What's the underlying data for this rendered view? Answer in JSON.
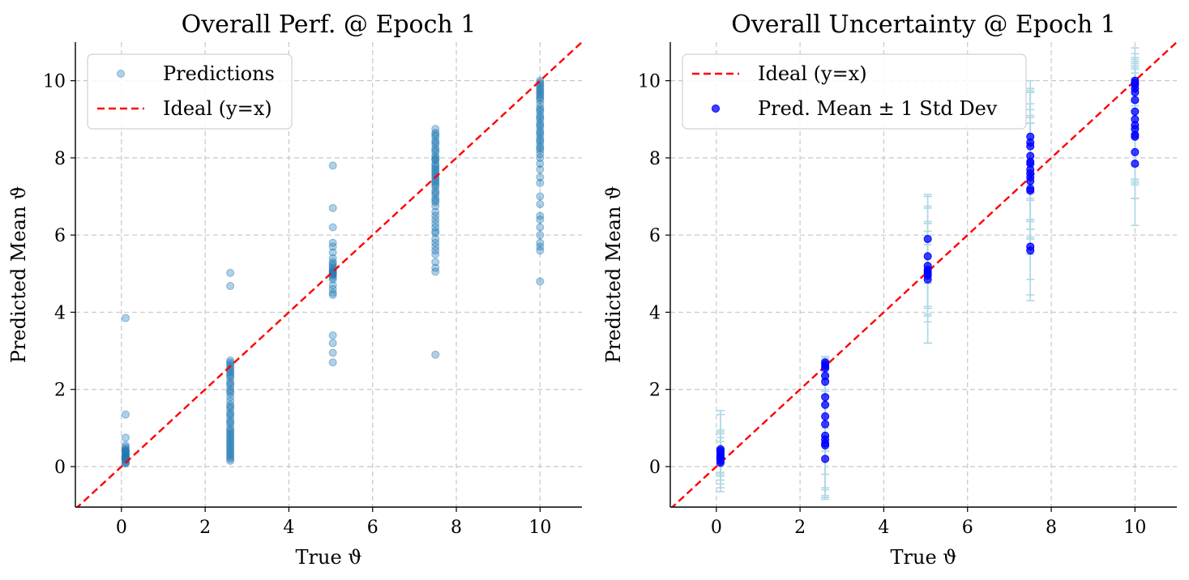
{
  "chart_data": [
    {
      "type": "scatter",
      "title": "Overall Perf. @ Epoch 1",
      "xlabel": "True ϑ",
      "ylabel": "Predicted Mean ϑ",
      "xlim": [
        -1.1,
        11.0
      ],
      "ylim": [
        -1.05,
        11.0
      ],
      "xticks": [
        0,
        2,
        4,
        6,
        8,
        10
      ],
      "yticks": [
        0,
        2,
        4,
        6,
        8,
        10
      ],
      "grid": true,
      "legend_position": "top-left",
      "colors": {
        "points": "#1f77b4",
        "ideal": "#ff0000"
      },
      "legend": [
        {
          "label": "Predictions",
          "kind": "marker"
        },
        {
          "label": "Ideal (y=x)",
          "kind": "dashed-line"
        }
      ],
      "ideal_line": {
        "from": [
          -1.1,
          -1.1
        ],
        "to": [
          11.0,
          11.0
        ]
      },
      "series": [
        {
          "name": "Predictions",
          "x": [
            0.1,
            0.1,
            0.1,
            0.1,
            0.1,
            0.1,
            0.1,
            0.1,
            0.1,
            0.1,
            0.1,
            0.1,
            0.1,
            0.1,
            0.1,
            0.1,
            0.1,
            0.1,
            0.1,
            0.1,
            0.1,
            0.1,
            2.6,
            2.6,
            2.6,
            2.6,
            2.6,
            2.6,
            2.6,
            2.6,
            2.6,
            2.6,
            2.6,
            2.6,
            2.6,
            2.6,
            2.6,
            2.6,
            2.6,
            2.6,
            2.6,
            2.6,
            2.6,
            2.6,
            2.6,
            2.6,
            2.6,
            2.6,
            2.6,
            2.6,
            2.6,
            2.6,
            2.6,
            2.6,
            2.6,
            2.6,
            2.6,
            2.6,
            2.6,
            2.6,
            2.6,
            2.6,
            2.6,
            2.6,
            2.6,
            2.6,
            2.6,
            2.6,
            2.6,
            5.05,
            5.05,
            5.05,
            5.05,
            5.05,
            5.05,
            5.05,
            5.05,
            5.05,
            5.05,
            5.05,
            5.05,
            5.05,
            5.05,
            5.05,
            5.05,
            5.05,
            5.05,
            5.05,
            5.05,
            5.05,
            5.05,
            5.05,
            5.05,
            5.05,
            5.05,
            5.05,
            5.05,
            7.5,
            7.5,
            7.5,
            7.5,
            7.5,
            7.5,
            7.5,
            7.5,
            7.5,
            7.5,
            7.5,
            7.5,
            7.5,
            7.5,
            7.5,
            7.5,
            7.5,
            7.5,
            7.5,
            7.5,
            7.5,
            7.5,
            7.5,
            7.5,
            7.5,
            7.5,
            7.5,
            7.5,
            7.5,
            7.5,
            7.5,
            7.5,
            7.5,
            7.5,
            7.5,
            7.5,
            7.5,
            7.5,
            7.5,
            7.5,
            7.5,
            7.5,
            7.5,
            7.5,
            7.5,
            7.5,
            7.5,
            7.5,
            7.5,
            7.5,
            10.0,
            10.0,
            10.0,
            10.0,
            10.0,
            10.0,
            10.0,
            10.0,
            10.0,
            10.0,
            10.0,
            10.0,
            10.0,
            10.0,
            10.0,
            10.0,
            10.0,
            10.0,
            10.0,
            10.0,
            10.0,
            10.0,
            10.0,
            10.0,
            10.0,
            10.0,
            10.0,
            10.0,
            10.0,
            10.0,
            10.0,
            10.0,
            10.0,
            10.0,
            10.0,
            10.0,
            10.0,
            10.0,
            10.0,
            10.0,
            10.0,
            10.0,
            10.0,
            10.0,
            10.0,
            10.0
          ],
          "y": [
            3.85,
            1.35,
            0.75,
            0.55,
            0.5,
            0.45,
            0.42,
            0.4,
            0.38,
            0.35,
            0.33,
            0.3,
            0.28,
            0.26,
            0.24,
            0.22,
            0.2,
            0.18,
            0.15,
            0.12,
            0.1,
            0.08,
            5.02,
            4.68,
            2.75,
            2.7,
            2.65,
            2.6,
            2.55,
            2.5,
            2.45,
            2.4,
            2.3,
            2.2,
            2.1,
            2.0,
            1.9,
            1.8,
            1.7,
            1.6,
            1.5,
            1.4,
            1.3,
            1.2,
            1.1,
            1.0,
            0.95,
            0.9,
            0.85,
            0.8,
            0.75,
            0.7,
            0.65,
            0.6,
            0.55,
            0.5,
            0.45,
            0.4,
            0.35,
            0.3,
            0.25,
            0.2,
            0.15,
            1.55,
            1.35,
            1.15,
            2.35,
            2.15,
            1.95,
            7.8,
            6.7,
            6.2,
            5.8,
            5.7,
            5.55,
            5.4,
            5.3,
            5.25,
            5.2,
            5.15,
            5.1,
            5.08,
            5.05,
            5.02,
            5.0,
            4.98,
            4.95,
            4.9,
            4.85,
            4.7,
            4.5,
            4.45,
            3.4,
            3.2,
            2.95,
            2.7,
            4.6,
            8.75,
            8.65,
            8.55,
            8.45,
            8.35,
            8.25,
            8.15,
            8.05,
            7.95,
            7.85,
            7.75,
            7.65,
            7.55,
            7.45,
            7.35,
            7.25,
            7.15,
            7.05,
            6.95,
            6.85,
            6.75,
            6.6,
            6.4,
            6.3,
            6.2,
            6.05,
            5.9,
            5.8,
            5.7,
            5.6,
            5.5,
            5.3,
            5.15,
            5.05,
            2.9,
            7.95,
            7.7,
            7.5,
            7.3,
            7.1,
            6.9,
            7.4,
            7.6,
            7.8,
            8.0,
            8.2,
            8.4,
            8.6,
            6.5,
            6.1,
            10.0,
            9.95,
            9.9,
            9.85,
            9.8,
            9.75,
            9.7,
            9.65,
            9.6,
            9.55,
            9.5,
            9.4,
            9.3,
            9.2,
            9.1,
            9.0,
            8.9,
            8.8,
            8.7,
            8.6,
            8.5,
            8.4,
            8.3,
            8.2,
            8.1,
            8.0,
            7.85,
            7.7,
            7.5,
            7.35,
            7.0,
            6.8,
            6.5,
            6.4,
            6.2,
            6.0,
            5.8,
            5.7,
            5.6,
            4.8,
            9.25,
            9.05,
            8.85,
            8.65,
            8.45,
            8.25
          ]
        }
      ]
    },
    {
      "type": "scatter",
      "title": "Overall Uncertainty @ Epoch 1",
      "xlabel": "True ϑ",
      "ylabel": "Predicted Mean ϑ",
      "xlim": [
        -1.1,
        11.0
      ],
      "ylim": [
        -1.05,
        11.0
      ],
      "xticks": [
        0,
        2,
        4,
        6,
        8,
        10
      ],
      "yticks": [
        0,
        2,
        4,
        6,
        8,
        10
      ],
      "grid": true,
      "legend_position": "top-left",
      "colors": {
        "points": "#0000ff",
        "errorbars": "#add8e6",
        "ideal": "#ff0000"
      },
      "legend": [
        {
          "label": "Ideal (y=x)",
          "kind": "dashed-line"
        },
        {
          "label": "Pred. Mean ± 1 Std Dev",
          "kind": "marker"
        }
      ],
      "ideal_line": {
        "from": [
          -1.1,
          -1.1
        ],
        "to": [
          11.0,
          11.0
        ]
      },
      "series": [
        {
          "name": "Pred. Mean ± 1 Std Dev",
          "x": [
            0.1,
            0.1,
            0.1,
            0.1,
            0.1,
            0.1,
            0.1,
            0.1,
            2.6,
            2.6,
            2.6,
            2.6,
            2.6,
            2.6,
            2.6,
            2.6,
            2.6,
            2.6,
            2.6,
            2.6,
            2.6,
            2.6,
            2.6,
            5.05,
            5.05,
            5.05,
            5.05,
            5.05,
            5.05,
            5.05,
            5.05,
            7.5,
            7.5,
            7.5,
            7.5,
            7.5,
            7.5,
            7.5,
            7.5,
            7.5,
            7.5,
            7.5,
            7.5,
            7.5,
            7.5,
            10.0,
            10.0,
            10.0,
            10.0,
            10.0,
            10.0,
            10.0,
            10.0,
            10.0,
            10.0,
            10.0,
            10.0,
            10.0,
            10.0
          ],
          "y": [
            0.45,
            0.4,
            0.35,
            0.3,
            0.25,
            0.2,
            0.15,
            0.1,
            2.7,
            2.65,
            2.6,
            2.55,
            2.35,
            2.2,
            1.8,
            1.6,
            1.3,
            1.1,
            0.8,
            0.7,
            0.6,
            0.55,
            0.2,
            5.9,
            5.45,
            5.2,
            5.1,
            5.05,
            5.0,
            4.95,
            4.85,
            8.55,
            8.4,
            8.3,
            8.05,
            7.85,
            7.7,
            7.6,
            7.5,
            7.4,
            7.2,
            7.15,
            5.7,
            5.6,
            7.9,
            10.0,
            9.95,
            9.9,
            9.8,
            9.5,
            9.2,
            9.0,
            8.85,
            8.75,
            8.6,
            8.55,
            8.15,
            7.85,
            9.7
          ],
          "err": [
            0.9,
            1.05,
            0.55,
            0.45,
            0.6,
            0.75,
            0.5,
            0.35,
            0.15,
            0.2,
            0.25,
            0.2,
            0.4,
            0.6,
            1.0,
            1.2,
            1.5,
            1.65,
            1.6,
            1.55,
            1.4,
            1.3,
            0.8,
            1.15,
            1.3,
            1.1,
            1.9,
            1.3,
            1.1,
            1.75,
            0.9,
            1.25,
            1.3,
            1.4,
            1.65,
            1.9,
            1.55,
            1.45,
            1.6,
            1.5,
            1.7,
            2.85,
            1.25,
            0.75,
            1.5,
            0.55,
            0.5,
            0.4,
            0.6,
            1.0,
            1.4,
            1.7,
            1.5,
            1.3,
            1.2,
            2.3,
            1.2,
            0.9,
            0.5
          ]
        }
      ]
    }
  ]
}
